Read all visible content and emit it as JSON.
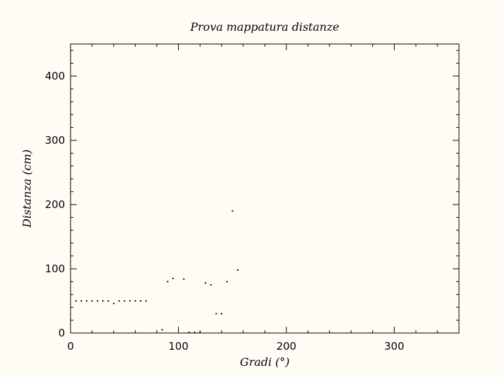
{
  "chart_data": {
    "type": "scatter",
    "title": "Prova mappatura distanze",
    "xlabel": "Gradi (°)",
    "ylabel": "Distanza (cm)",
    "xlim": [
      0,
      360
    ],
    "ylim": [
      0,
      450
    ],
    "x_ticks": [
      0,
      100,
      200,
      300
    ],
    "x_tick_labels": [
      "0",
      "100",
      "200",
      "300"
    ],
    "y_ticks": [
      0,
      100,
      200,
      300,
      400
    ],
    "y_tick_labels": [
      "0",
      "100",
      "200",
      "300",
      "400"
    ],
    "x_minor_step": 20,
    "y_minor_step": 20,
    "grid": false,
    "marker_color": "#000000",
    "background": "#fffcf5",
    "points": [
      [
        5,
        50
      ],
      [
        10,
        50
      ],
      [
        15,
        50
      ],
      [
        20,
        50
      ],
      [
        25,
        50
      ],
      [
        30,
        50
      ],
      [
        35,
        50
      ],
      [
        40,
        46
      ],
      [
        45,
        50
      ],
      [
        50,
        50
      ],
      [
        55,
        50
      ],
      [
        60,
        50
      ],
      [
        65,
        50
      ],
      [
        70,
        50
      ],
      [
        85,
        5
      ],
      [
        90,
        80
      ],
      [
        95,
        85
      ],
      [
        105,
        84
      ],
      [
        110,
        1
      ],
      [
        115,
        1
      ],
      [
        120,
        1
      ],
      [
        125,
        78
      ],
      [
        130,
        75
      ],
      [
        135,
        30
      ],
      [
        140,
        30
      ],
      [
        145,
        80
      ],
      [
        150,
        190
      ],
      [
        155,
        98
      ]
    ]
  }
}
